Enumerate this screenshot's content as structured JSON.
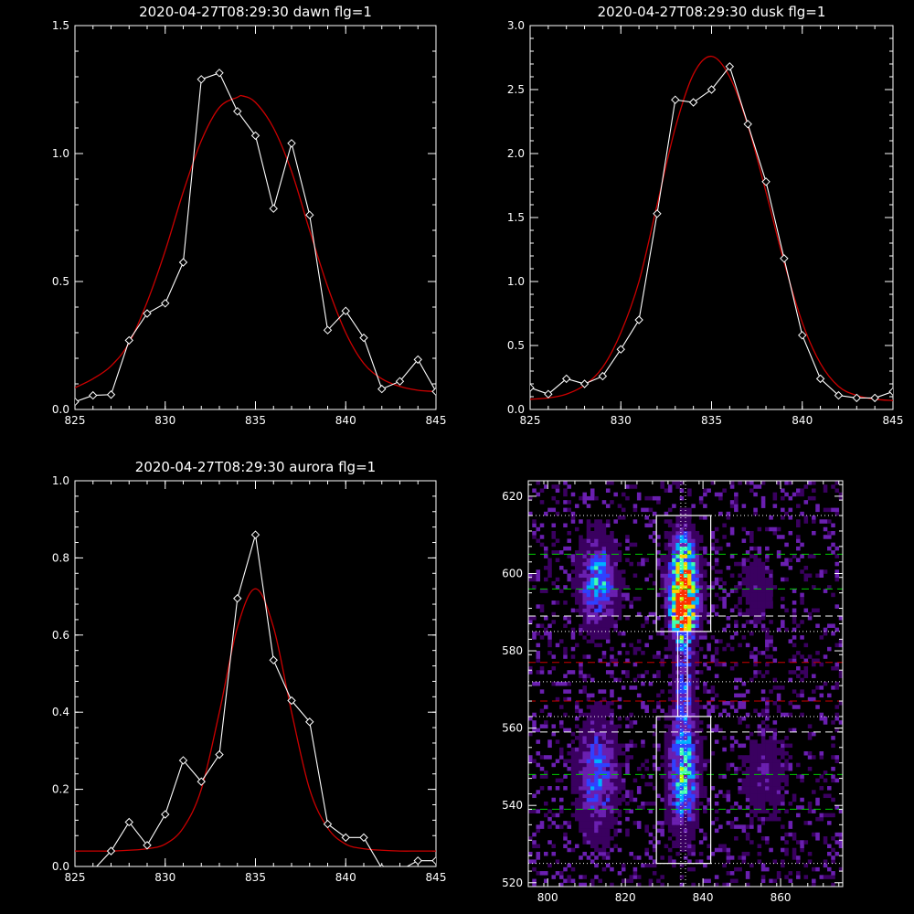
{
  "chart_data": [
    {
      "type": "line",
      "title": "2020-04-27T08:29:30 dawn flg=1",
      "xlim": [
        825,
        845
      ],
      "ylim": [
        0,
        1.5
      ],
      "x_ticks": [
        "825",
        "830",
        "835",
        "840",
        "845"
      ],
      "y_ticks": [
        "0.0",
        "0.5",
        "1.0",
        "1.5"
      ],
      "series": [
        {
          "role": "data",
          "color": "#ffffff",
          "x": [
            825,
            826,
            827,
            828,
            829,
            830,
            831,
            832,
            833,
            834,
            835,
            836,
            837,
            838,
            839,
            840,
            841,
            842,
            843,
            844,
            845
          ],
          "y": [
            0.03,
            0.055,
            0.058,
            0.27,
            0.375,
            0.415,
            0.575,
            1.29,
            1.315,
            1.165,
            1.07,
            0.785,
            1.04,
            0.76,
            0.31,
            0.385,
            0.28,
            0.08,
            0.11,
            0.195,
            0.07
          ]
        },
        {
          "role": "fit",
          "color": "#cc0000",
          "x": [
            825,
            826,
            827,
            828,
            829,
            830,
            831,
            832,
            833,
            834,
            834.3,
            835,
            836,
            837,
            838,
            839,
            840,
            841,
            842,
            843,
            844,
            845
          ],
          "y": [
            0.085,
            0.12,
            0.17,
            0.26,
            0.42,
            0.62,
            0.85,
            1.05,
            1.18,
            1.22,
            1.225,
            1.2,
            1.1,
            0.93,
            0.7,
            0.48,
            0.3,
            0.18,
            0.12,
            0.09,
            0.075,
            0.07
          ]
        }
      ]
    },
    {
      "type": "line",
      "title": "2020-04-27T08:29:30 dusk flg=1",
      "xlim": [
        825,
        845
      ],
      "ylim": [
        0,
        3.0
      ],
      "x_ticks": [
        "825",
        "830",
        "835",
        "840",
        "845"
      ],
      "y_ticks": [
        "0.0",
        "0.5",
        "1.0",
        "1.5",
        "2.0",
        "2.5",
        "3.0"
      ],
      "series": [
        {
          "role": "data",
          "color": "#ffffff",
          "x": [
            825,
            826,
            827,
            828,
            829,
            830,
            831,
            832,
            833,
            834,
            835,
            836,
            837,
            838,
            839,
            840,
            841,
            842,
            843,
            844,
            845
          ],
          "y": [
            0.17,
            0.12,
            0.24,
            0.2,
            0.26,
            0.47,
            0.7,
            1.53,
            2.42,
            2.4,
            2.5,
            2.68,
            2.23,
            1.78,
            1.18,
            0.58,
            0.24,
            0.11,
            0.09,
            0.09,
            0.14
          ]
        },
        {
          "role": "fit",
          "color": "#cc0000",
          "x": [
            825,
            826,
            827,
            828,
            829,
            830,
            831,
            832,
            833,
            834,
            835,
            836,
            837,
            838,
            839,
            840,
            841,
            842,
            843,
            844,
            845
          ],
          "y": [
            0.08,
            0.09,
            0.12,
            0.19,
            0.33,
            0.6,
            1.0,
            1.6,
            2.2,
            2.62,
            2.76,
            2.6,
            2.22,
            1.7,
            1.15,
            0.68,
            0.36,
            0.18,
            0.11,
            0.08,
            0.07
          ]
        }
      ]
    },
    {
      "type": "line",
      "title": "2020-04-27T08:29:30 aurora flg=1",
      "xlim": [
        825,
        845
      ],
      "ylim": [
        0,
        1.0
      ],
      "x_ticks": [
        "825",
        "830",
        "835",
        "840",
        "845"
      ],
      "y_ticks": [
        "0.0",
        "0.2",
        "0.4",
        "0.6",
        "0.8",
        "1.0"
      ],
      "series": [
        {
          "role": "data",
          "color": "#ffffff",
          "x": [
            826,
            827,
            828,
            829,
            830,
            831,
            832,
            833,
            834,
            835,
            836,
            837,
            838,
            839,
            840,
            841,
            842,
            843,
            844,
            845
          ],
          "y": [
            -0.01,
            0.04,
            0.115,
            0.055,
            0.135,
            0.275,
            0.22,
            0.29,
            0.695,
            0.86,
            0.535,
            0.43,
            0.375,
            0.11,
            0.075,
            0.075,
            -0.005,
            -0.01,
            0.015,
            0.015
          ]
        },
        {
          "role": "fit",
          "color": "#cc0000",
          "x": [
            825,
            826,
            827,
            828,
            829,
            830,
            831,
            832,
            833,
            834,
            835,
            836,
            837,
            838,
            839,
            840,
            841,
            842,
            843,
            844,
            845
          ],
          "y": [
            0.04,
            0.04,
            0.04,
            0.042,
            0.046,
            0.058,
            0.1,
            0.2,
            0.4,
            0.62,
            0.72,
            0.62,
            0.4,
            0.2,
            0.1,
            0.058,
            0.046,
            0.042,
            0.04,
            0.04,
            0.04
          ]
        }
      ]
    },
    {
      "type": "heatmap",
      "xlim": [
        795,
        876
      ],
      "ylim": [
        519,
        624
      ],
      "x_ticks": [
        "800",
        "820",
        "840",
        "860"
      ],
      "y_ticks": [
        "520",
        "540",
        "560",
        "580",
        "600",
        "620"
      ],
      "boxes": [
        {
          "x": [
            828,
            842
          ],
          "y": [
            585,
            615
          ],
          "color": "#ffffff"
        },
        {
          "x": [
            828,
            842
          ],
          "y": [
            525,
            563
          ],
          "color": "#ffffff"
        },
        {
          "x": [
            833.5,
            836
          ],
          "y": [
            563,
            585
          ],
          "color": "#ffffff"
        }
      ],
      "hlines": [
        {
          "y": 615,
          "style": "dotted",
          "color": "#ffffff"
        },
        {
          "y": 605,
          "style": "dashed",
          "color": "#00cc00"
        },
        {
          "y": 596,
          "style": "dashed",
          "color": "#00cc00"
        },
        {
          "y": 589,
          "style": "dashed",
          "color": "#ffffff"
        },
        {
          "y": 585,
          "style": "dotted",
          "color": "#ffffff"
        },
        {
          "y": 577,
          "style": "dashed",
          "color": "#cc0000"
        },
        {
          "y": 572,
          "style": "dotted",
          "color": "#ffffff"
        },
        {
          "y": 567,
          "style": "dashed",
          "color": "#cc0000"
        },
        {
          "y": 563,
          "style": "dotted",
          "color": "#ffffff"
        },
        {
          "y": 559,
          "style": "dashed",
          "color": "#ffffff"
        },
        {
          "y": 548,
          "style": "dashed",
          "color": "#00cc00"
        },
        {
          "y": 539,
          "style": "dashed",
          "color": "#00cc00"
        },
        {
          "y": 525,
          "style": "dotted",
          "color": "#ffffff"
        }
      ],
      "vlines": [
        {
          "x": 834.3,
          "style": "dotted",
          "color": "#ffffff"
        },
        {
          "x": 835.5,
          "style": "dotted",
          "color": "#ffffff"
        }
      ],
      "colormap": [
        "#000000",
        "#3a0060",
        "#6a1fb0",
        "#3040ff",
        "#00b0ff",
        "#40ffb0",
        "#c0ff00",
        "#ffd000",
        "#ff3000"
      ],
      "blobs": [
        {
          "x": 835,
          "y": 598,
          "sx": 2.4,
          "sy": 8,
          "amp": 0.92
        },
        {
          "x": 835,
          "y": 590,
          "sx": 2.2,
          "sy": 4,
          "amp": 0.55
        },
        {
          "x": 835,
          "y": 548,
          "sx": 2.6,
          "sy": 10,
          "amp": 0.52
        },
        {
          "x": 835,
          "y": 574,
          "sx": 1.8,
          "sy": 11,
          "amp": 0.3
        },
        {
          "x": 813,
          "y": 598,
          "sx": 3.2,
          "sy": 8,
          "amp": 0.45
        },
        {
          "x": 813,
          "y": 548,
          "sx": 3.5,
          "sy": 10,
          "amp": 0.38
        },
        {
          "x": 854,
          "y": 596,
          "sx": 3,
          "sy": 6,
          "amp": 0.16
        },
        {
          "x": 856,
          "y": 548,
          "sx": 4,
          "sy": 8,
          "amp": 0.16
        }
      ]
    }
  ]
}
